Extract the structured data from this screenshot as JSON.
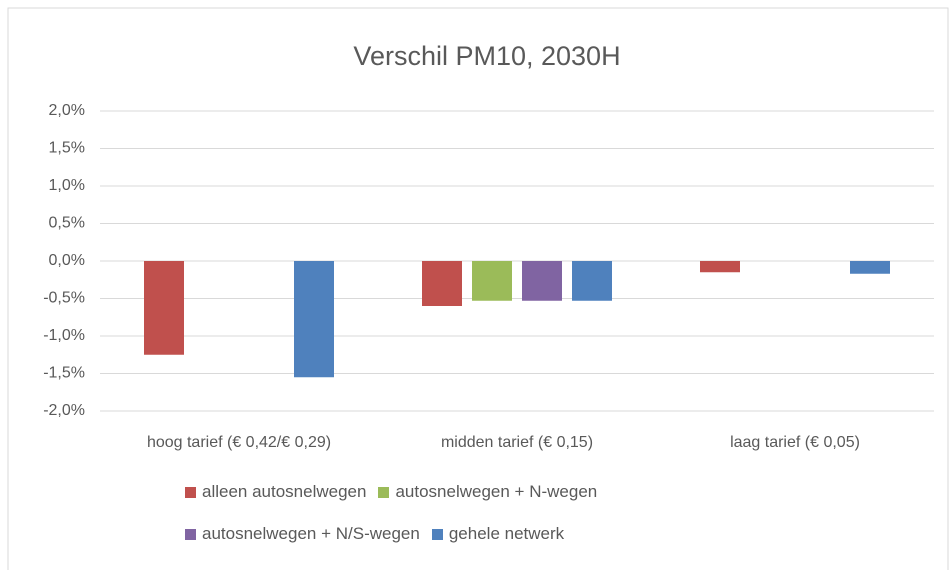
{
  "chart_data": {
    "type": "bar",
    "title": "Verschil PM10, 2030H",
    "categories": [
      "hoog tarief (€ 0,42/€ 0,29)",
      "midden tarief (€ 0,15)",
      "laag tarief (€ 0,05)"
    ],
    "series": [
      {
        "name": "alleen autosnelwegen",
        "color": "#c0504d",
        "values": [
          -1.25,
          -0.6,
          -0.15
        ]
      },
      {
        "name": "autosnelwegen + N-wegen",
        "color": "#9bbb59",
        "values": [
          null,
          -0.53,
          null
        ]
      },
      {
        "name": "autosnelwegen + N/S-wegen",
        "color": "#8064a2",
        "values": [
          null,
          -0.53,
          null
        ]
      },
      {
        "name": "gehele netwerk",
        "color": "#4f81bd",
        "values": [
          -1.55,
          -0.53,
          -0.17
        ]
      }
    ],
    "ylim": [
      -2.0,
      2.0
    ],
    "yticks": [
      {
        "value": 2.0,
        "label": "2,0%"
      },
      {
        "value": 1.5,
        "label": "1,5%"
      },
      {
        "value": 1.0,
        "label": "1,0%"
      },
      {
        "value": 0.5,
        "label": "0,5%"
      },
      {
        "value": 0,
        "label": "0,0%"
      },
      {
        "value": -0.5,
        "label": "-0,5%"
      },
      {
        "value": -1.0,
        "label": "-1,0%"
      },
      {
        "value": -1.5,
        "label": "-1,5%"
      },
      {
        "value": -2.0,
        "label": "-2,0%"
      }
    ],
    "grid": true,
    "legend": "bottom"
  }
}
